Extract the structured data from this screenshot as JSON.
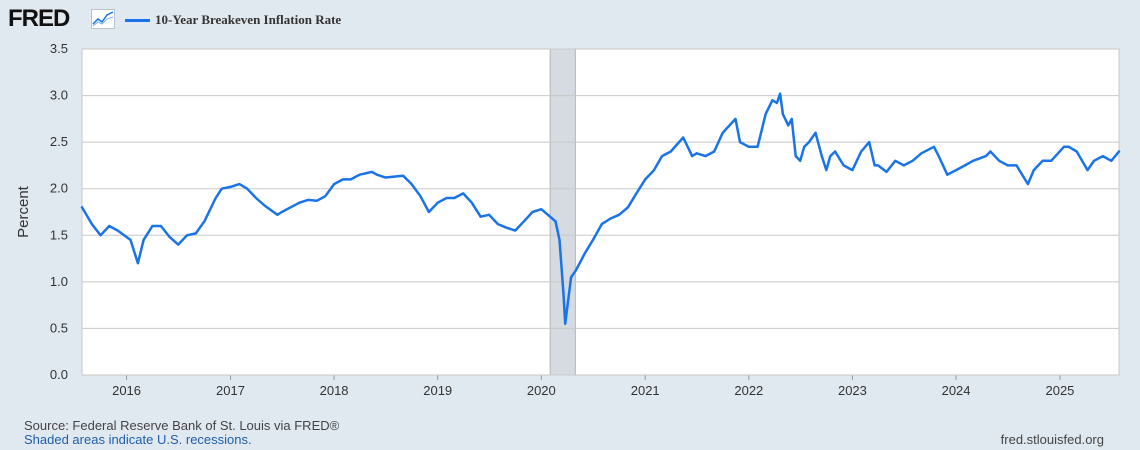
{
  "header": {
    "logo_text": "FRED",
    "logo_icon": "line-graph-icon",
    "series_label": "10-Year Breakeven Inflation Rate"
  },
  "footer": {
    "source": "Source: Federal Reserve Bank of St. Louis via FRED®",
    "recession_note": "Shaded areas indicate U.S. recessions.",
    "site": "fred.stlouisfed.org"
  },
  "colors": {
    "line": "#1a73e8",
    "plot_background": "#ffffff",
    "page_background": "#e1e9f0",
    "gridline": "#c8c8c8",
    "recession": "#d5dbe0"
  },
  "chart_data": {
    "type": "line",
    "ylabel": "Percent",
    "xlim": [
      "2015-07-28",
      "2025-07-28"
    ],
    "ylim": [
      0.0,
      3.5
    ],
    "y_ticks": [
      "0.0",
      "0.5",
      "1.0",
      "1.5",
      "2.0",
      "2.5",
      "3.0",
      "3.5"
    ],
    "x_ticks": [
      "2016",
      "2017",
      "2018",
      "2019",
      "2020",
      "2021",
      "2022",
      "2023",
      "2024",
      "2025"
    ],
    "grid": true,
    "legend": "top-left",
    "recessions": [
      {
        "start": "2020-02-01",
        "end": "2020-04-30"
      }
    ],
    "series": [
      {
        "name": "10-Year Breakeven Inflation Rate",
        "x": [
          "2015-07-28",
          "2015-09-01",
          "2015-10-01",
          "2015-11-01",
          "2015-12-01",
          "2016-01-15",
          "2016-02-10",
          "2016-03-01",
          "2016-04-01",
          "2016-05-01",
          "2016-06-01",
          "2016-07-01",
          "2016-08-01",
          "2016-09-01",
          "2016-10-01",
          "2016-11-10",
          "2016-12-01",
          "2017-01-01",
          "2017-02-01",
          "2017-03-01",
          "2017-04-01",
          "2017-05-01",
          "2017-06-15",
          "2017-07-01",
          "2017-08-01",
          "2017-09-01",
          "2017-10-01",
          "2017-11-01",
          "2017-12-01",
          "2018-01-01",
          "2018-02-01",
          "2018-03-01",
          "2018-04-01",
          "2018-05-15",
          "2018-06-01",
          "2018-07-01",
          "2018-08-01",
          "2018-09-01",
          "2018-10-01",
          "2018-11-01",
          "2018-12-01",
          "2019-01-01",
          "2019-02-01",
          "2019-03-01",
          "2019-04-01",
          "2019-05-01",
          "2019-06-01",
          "2019-07-01",
          "2019-08-01",
          "2019-09-01",
          "2019-10-01",
          "2019-11-01",
          "2019-12-01",
          "2020-01-01",
          "2020-02-01",
          "2020-02-20",
          "2020-03-05",
          "2020-03-19",
          "2020-03-25",
          "2020-04-15",
          "2020-05-01",
          "2020-06-01",
          "2020-07-01",
          "2020-08-01",
          "2020-09-01",
          "2020-10-01",
          "2020-11-01",
          "2020-12-01",
          "2021-01-01",
          "2021-02-01",
          "2021-03-01",
          "2021-04-01",
          "2021-05-15",
          "2021-06-15",
          "2021-07-01",
          "2021-08-01",
          "2021-09-01",
          "2021-10-01",
          "2021-11-15",
          "2021-12-01",
          "2022-01-01",
          "2022-02-01",
          "2022-03-01",
          "2022-03-25",
          "2022-04-10",
          "2022-04-21",
          "2022-05-01",
          "2022-05-20",
          "2022-06-01",
          "2022-06-15",
          "2022-07-01",
          "2022-07-15",
          "2022-08-01",
          "2022-08-24",
          "2022-09-15",
          "2022-10-01",
          "2022-10-15",
          "2022-11-01",
          "2022-12-01",
          "2023-01-01",
          "2023-02-01",
          "2023-03-01",
          "2023-03-20",
          "2023-04-01",
          "2023-05-01",
          "2023-06-01",
          "2023-07-01",
          "2023-08-01",
          "2023-09-01",
          "2023-10-15",
          "2023-11-01",
          "2023-12-01",
          "2024-01-01",
          "2024-02-01",
          "2024-03-01",
          "2024-04-15",
          "2024-05-01",
          "2024-06-01",
          "2024-07-01",
          "2024-08-01",
          "2024-09-10",
          "2024-10-01",
          "2024-11-01",
          "2024-12-01",
          "2025-01-15",
          "2025-02-01",
          "2025-03-01",
          "2025-04-08",
          "2025-05-01",
          "2025-06-01",
          "2025-07-01",
          "2025-07-28"
        ],
        "y": [
          1.8,
          1.62,
          1.5,
          1.6,
          1.55,
          1.45,
          1.2,
          1.45,
          1.6,
          1.6,
          1.48,
          1.4,
          1.5,
          1.52,
          1.65,
          1.9,
          2.0,
          2.02,
          2.05,
          2.0,
          1.9,
          1.82,
          1.72,
          1.75,
          1.8,
          1.85,
          1.88,
          1.87,
          1.92,
          2.05,
          2.1,
          2.1,
          2.15,
          2.18,
          2.15,
          2.12,
          2.13,
          2.14,
          2.05,
          1.92,
          1.75,
          1.85,
          1.9,
          1.9,
          1.95,
          1.85,
          1.7,
          1.72,
          1.62,
          1.58,
          1.55,
          1.65,
          1.75,
          1.78,
          1.7,
          1.65,
          1.45,
          0.87,
          0.55,
          1.05,
          1.12,
          1.3,
          1.45,
          1.62,
          1.68,
          1.72,
          1.8,
          1.95,
          2.1,
          2.2,
          2.35,
          2.4,
          2.55,
          2.35,
          2.38,
          2.35,
          2.4,
          2.6,
          2.75,
          2.5,
          2.45,
          2.45,
          2.8,
          2.95,
          2.92,
          3.02,
          2.8,
          2.68,
          2.75,
          2.35,
          2.3,
          2.45,
          2.5,
          2.6,
          2.35,
          2.2,
          2.35,
          2.4,
          2.25,
          2.2,
          2.4,
          2.5,
          2.25,
          2.25,
          2.18,
          2.3,
          2.25,
          2.3,
          2.38,
          2.45,
          2.35,
          2.15,
          2.2,
          2.25,
          2.3,
          2.35,
          2.4,
          2.3,
          2.25,
          2.25,
          2.05,
          2.2,
          2.3,
          2.3,
          2.45,
          2.45,
          2.4,
          2.2,
          2.3,
          2.35,
          2.3,
          2.4
        ]
      }
    ]
  }
}
